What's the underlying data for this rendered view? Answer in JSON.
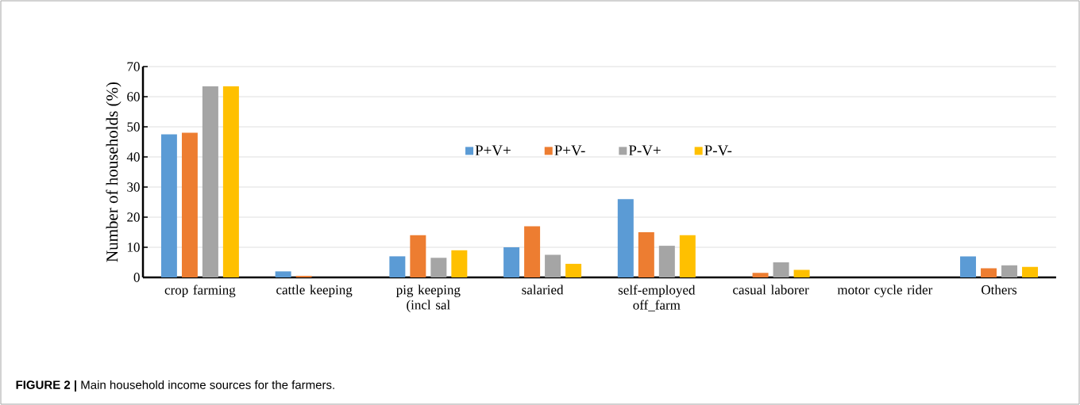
{
  "chart_data": {
    "type": "bar",
    "ylabel": "Number of households (%)",
    "categories": [
      "crop farming",
      "cattle keeping",
      "pig keeping (incl sal",
      "salaried",
      "self-employed off_farm",
      "casual laborer",
      "motor cycle rider",
      "Others"
    ],
    "series": [
      {
        "name": "P+V+",
        "color": "#5b9bd5",
        "values": [
          47.5,
          2,
          7,
          10,
          26,
          0,
          0,
          7
        ]
      },
      {
        "name": "P+V-",
        "color": "#ed7d31",
        "values": [
          48,
          0.5,
          14,
          17,
          15,
          1.5,
          0,
          3
        ]
      },
      {
        "name": "P-V+",
        "color": "#a5a5a5",
        "values": [
          63.5,
          0,
          6.5,
          7.5,
          10.5,
          5,
          0,
          4
        ]
      },
      {
        "name": "P-V-",
        "color": "#ffc000",
        "values": [
          63.5,
          0,
          9,
          4.5,
          14,
          2.5,
          0,
          3.5
        ]
      }
    ],
    "ylim": [
      0,
      70
    ],
    "yticks": [
      0,
      10,
      20,
      30,
      40,
      50,
      60,
      70
    ],
    "grid": "y",
    "legend": "top",
    "annotations": [
      "**FIGURE 2 |** Main household income sources for the farmers."
    ]
  }
}
